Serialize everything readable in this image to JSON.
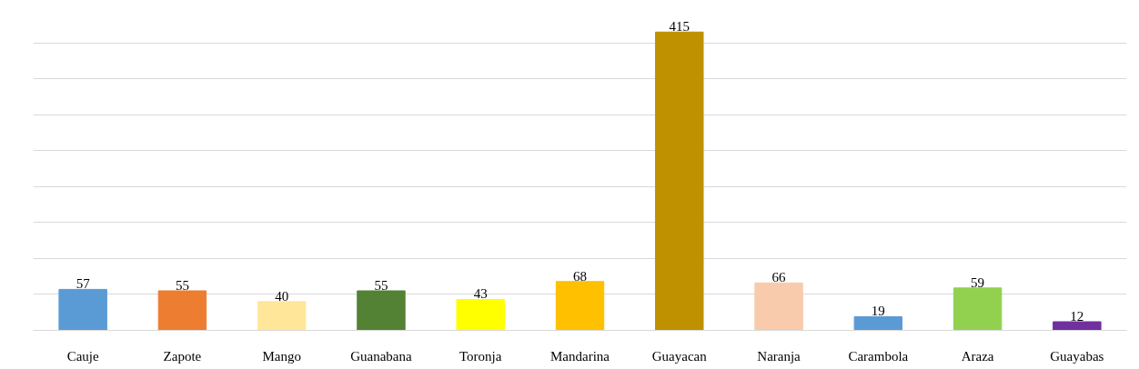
{
  "chart_data": {
    "type": "bar",
    "categories": [
      "Cauje",
      "Zapote",
      "Mango",
      "Guanabana",
      "Toronja",
      "Mandarina",
      "Guayacan",
      "Naranja",
      "Carambola",
      "Araza",
      "Guayabas"
    ],
    "values": [
      57,
      55,
      40,
      55,
      43,
      68,
      415,
      66,
      19,
      59,
      12
    ],
    "colors": [
      "#5b9bd5",
      "#ed7d31",
      "#ffe699",
      "#548235",
      "#ffff00",
      "#ffc000",
      "#bf9000",
      "#f8cbad",
      "#5b9bd5",
      "#92d050",
      "#7030a0"
    ],
    "grid": "y",
    "tick_labels": "x",
    "data_labels": true
  }
}
